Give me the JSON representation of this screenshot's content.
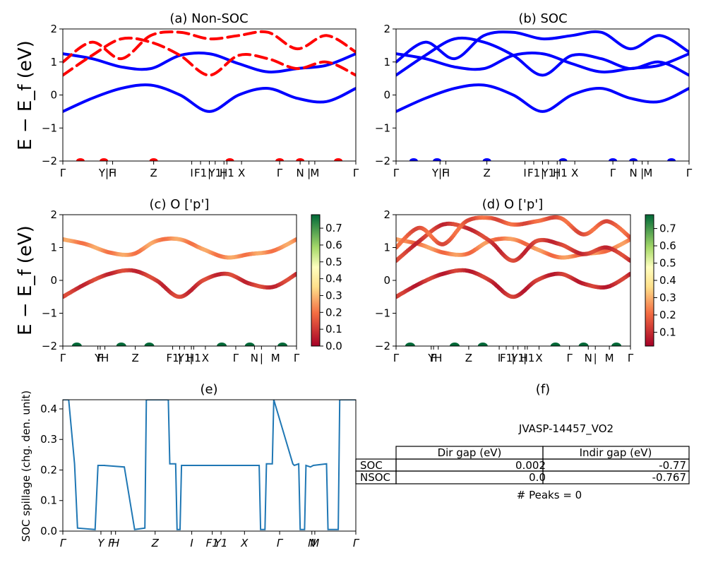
{
  "chart_data": [
    {
      "type": "line",
      "title": "(a) Non-SOC",
      "ylabel": "E − E_f (eV)",
      "ylim": [
        -2,
        2
      ],
      "yticks": [
        "−2",
        "−1",
        "0",
        "1",
        "2"
      ],
      "xtick_labels": [
        "Γ",
        "Y|F",
        "H",
        "Z",
        "I",
        "F1",
        "|",
        "Y1",
        "|",
        "H1",
        "X",
        "Γ",
        "N",
        "|",
        "M",
        "Γ"
      ],
      "series": [
        {
          "style": "solid",
          "color": "#0000ff",
          "bands": [
            {
              "x": [
                0,
                0.1,
                0.2,
                0.3,
                0.4,
                0.5,
                0.6,
                0.7,
                0.8,
                0.9,
                1.0
              ],
              "y": [
                -0.5,
                -0.1,
                0.2,
                0.3,
                0.0,
                -0.5,
                0.0,
                0.2,
                -0.1,
                -0.2,
                0.2
              ]
            },
            {
              "x": [
                0,
                0.1,
                0.2,
                0.3,
                0.4,
                0.5,
                0.6,
                0.7,
                0.8,
                0.9,
                1.0
              ],
              "y": [
                1.25,
                1.1,
                0.85,
                0.8,
                1.2,
                1.25,
                0.95,
                0.7,
                0.8,
                0.9,
                1.25
              ]
            }
          ]
        },
        {
          "style": "dashed",
          "color": "#ff0000",
          "bands": [
            {
              "x": [
                0,
                0.1,
                0.2,
                0.3,
                0.4,
                0.5,
                0.6,
                0.7,
                0.8,
                0.9,
                1.0
              ],
              "y": [
                0.6,
                1.2,
                1.7,
                1.6,
                1.2,
                0.6,
                1.2,
                1.1,
                0.8,
                1.0,
                0.6
              ]
            },
            {
              "x": [
                0,
                0.1,
                0.2,
                0.3,
                0.4,
                0.5,
                0.6,
                0.7,
                0.8,
                0.9,
                1.0
              ],
              "y": [
                1.0,
                1.6,
                1.1,
                1.8,
                1.9,
                1.7,
                1.8,
                1.9,
                1.4,
                1.8,
                1.3
              ]
            }
          ]
        }
      ]
    },
    {
      "type": "line",
      "title": "(b) SOC",
      "ylim": [
        -2,
        2
      ],
      "yticks": [
        "−2",
        "−1",
        "0",
        "1",
        "2"
      ],
      "xtick_labels": [
        "Γ",
        "Y|F",
        "H",
        "Z",
        "I",
        "F1",
        "|",
        "Y1",
        "|",
        "H1",
        "X",
        "Γ",
        "N",
        "|",
        "M",
        "Γ"
      ],
      "series": [
        {
          "style": "solid",
          "color": "#0000ff",
          "bands": [
            {
              "x": [
                0,
                0.1,
                0.2,
                0.3,
                0.4,
                0.5,
                0.6,
                0.7,
                0.8,
                0.9,
                1.0
              ],
              "y": [
                -0.5,
                -0.1,
                0.2,
                0.3,
                0.0,
                -0.5,
                0.0,
                0.2,
                -0.1,
                -0.2,
                0.2
              ]
            },
            {
              "x": [
                0,
                0.1,
                0.2,
                0.3,
                0.4,
                0.5,
                0.6,
                0.7,
                0.8,
                0.9,
                1.0
              ],
              "y": [
                1.25,
                1.1,
                0.85,
                0.8,
                1.2,
                1.25,
                0.95,
                0.7,
                0.8,
                0.9,
                1.25
              ]
            },
            {
              "x": [
                0,
                0.1,
                0.2,
                0.3,
                0.4,
                0.5,
                0.6,
                0.7,
                0.8,
                0.9,
                1.0
              ],
              "y": [
                0.6,
                1.2,
                1.7,
                1.6,
                1.2,
                0.6,
                1.2,
                1.1,
                0.8,
                1.0,
                0.6
              ]
            },
            {
              "x": [
                0,
                0.1,
                0.2,
                0.3,
                0.4,
                0.5,
                0.6,
                0.7,
                0.8,
                0.9,
                1.0
              ],
              "y": [
                1.0,
                1.6,
                1.1,
                1.8,
                1.9,
                1.7,
                1.8,
                1.9,
                1.4,
                1.8,
                1.3
              ]
            }
          ]
        }
      ]
    },
    {
      "type": "scatter",
      "title": "(c)  O ['p']",
      "ylabel": "E − E_f (eV)",
      "ylim": [
        -2,
        2
      ],
      "yticks": [
        "−2",
        "−1",
        "0",
        "1",
        "2"
      ],
      "xtick_labels": [
        "Γ",
        "Y",
        "F",
        "H",
        "Z",
        "F1",
        "|",
        "Y1",
        "|",
        "H1",
        "X",
        "Γ",
        "N",
        "|",
        "M",
        "Γ"
      ],
      "colorbar": {
        "ticks": [
          "0.0",
          "0.1",
          "0.2",
          "0.3",
          "0.4",
          "0.5",
          "0.6",
          "0.7"
        ],
        "range": [
          0,
          0.78
        ]
      },
      "bands": [
        {
          "x": [
            0,
            0.1,
            0.2,
            0.3,
            0.4,
            0.5,
            0.6,
            0.7,
            0.8,
            0.9,
            1.0
          ],
          "y": [
            -0.5,
            -0.1,
            0.2,
            0.3,
            0.0,
            -0.5,
            0.0,
            0.2,
            -0.1,
            -0.2,
            0.2
          ],
          "weight": 0.1
        },
        {
          "x": [
            0,
            0.1,
            0.2,
            0.3,
            0.4,
            0.5,
            0.6,
            0.7,
            0.8,
            0.9,
            1.0
          ],
          "y": [
            1.25,
            1.1,
            0.85,
            0.8,
            1.2,
            1.25,
            0.95,
            0.7,
            0.8,
            0.9,
            1.25
          ],
          "weight": 0.24
        }
      ]
    },
    {
      "type": "scatter",
      "title": "(d) O ['p']",
      "ylim": [
        -2,
        2
      ],
      "yticks": [
        "−2",
        "−1",
        "0",
        "1",
        "2"
      ],
      "xtick_labels": [
        "Γ",
        "Y",
        "F",
        "H",
        "Z",
        "I",
        "F1",
        "|",
        "Y1",
        "|",
        "H1",
        "X",
        "Γ",
        "N",
        "|",
        "M",
        "Γ"
      ],
      "colorbar": {
        "ticks": [
          "0.1",
          "0.2",
          "0.3",
          "0.4",
          "0.5",
          "0.6",
          "0.7"
        ],
        "range": [
          0.02,
          0.78
        ]
      },
      "bands": [
        {
          "x": [
            0,
            0.1,
            0.2,
            0.3,
            0.4,
            0.5,
            0.6,
            0.7,
            0.8,
            0.9,
            1.0
          ],
          "y": [
            -0.5,
            -0.1,
            0.2,
            0.3,
            0.0,
            -0.5,
            0.0,
            0.2,
            -0.1,
            -0.2,
            0.2
          ],
          "weight": 0.1
        },
        {
          "x": [
            0,
            0.1,
            0.2,
            0.3,
            0.4,
            0.5,
            0.6,
            0.7,
            0.8,
            0.9,
            1.0
          ],
          "y": [
            1.25,
            1.1,
            0.85,
            0.8,
            1.2,
            1.25,
            0.95,
            0.7,
            0.8,
            0.9,
            1.25
          ],
          "weight": 0.24
        },
        {
          "x": [
            0,
            0.1,
            0.2,
            0.3,
            0.4,
            0.5,
            0.6,
            0.7,
            0.8,
            0.9,
            1.0
          ],
          "y": [
            0.6,
            1.2,
            1.7,
            1.6,
            1.2,
            0.6,
            1.2,
            1.1,
            0.8,
            1.0,
            0.6
          ],
          "weight": 0.12
        },
        {
          "x": [
            0,
            0.1,
            0.2,
            0.3,
            0.4,
            0.5,
            0.6,
            0.7,
            0.8,
            0.9,
            1.0
          ],
          "y": [
            1.0,
            1.6,
            1.1,
            1.8,
            1.9,
            1.7,
            1.8,
            1.9,
            1.4,
            1.8,
            1.3
          ],
          "weight": 0.18
        }
      ]
    },
    {
      "type": "line",
      "title": "(e)",
      "ylabel": "SOC spillage (chg. den. unit)",
      "ylim": [
        0,
        0.43
      ],
      "yticks": [
        "0.0",
        "0.1",
        "0.2",
        "0.3",
        "0.4"
      ],
      "xtick_labels": [
        "Γ",
        "Y",
        "F",
        "H",
        "Z",
        "I",
        "F1",
        "Y1",
        "X",
        "Γ",
        "N",
        "M",
        "Γ"
      ],
      "x": [
        0,
        0.02,
        0.04,
        0.05,
        0.11,
        0.12,
        0.145,
        0.14,
        0.21,
        0.245,
        0.28,
        0.285,
        0.36,
        0.365,
        0.385,
        0.39,
        0.4,
        0.405,
        0.67,
        0.675,
        0.69,
        0.695,
        0.715,
        0.72,
        0.72,
        0.785,
        0.79,
        0.805,
        0.81,
        0.825,
        0.83,
        0.845,
        0.855,
        0.9,
        0.905,
        0.94,
        0.945,
        1.0
      ],
      "y": [
        0.43,
        0.43,
        0.22,
        0.01,
        0.005,
        0.215,
        0.215,
        0.215,
        0.21,
        0.005,
        0.01,
        0.43,
        0.43,
        0.22,
        0.22,
        0.005,
        0.005,
        0.215,
        0.215,
        0.005,
        0.005,
        0.22,
        0.22,
        0.43,
        0.43,
        0.22,
        0.215,
        0.22,
        0.005,
        0.005,
        0.215,
        0.21,
        0.215,
        0.22,
        0.005,
        0.005,
        0.43,
        0.43
      ]
    }
  ],
  "table_panel": {
    "title": "(f)",
    "subtitle": "JVASP-14457_VO2",
    "headers": [
      "",
      "Dir gap (eV)",
      "Indir gap (eV)"
    ],
    "rows": [
      [
        "SOC",
        "0.002",
        "-0.77"
      ],
      [
        "NSOC",
        "0.0",
        "-0.767"
      ]
    ],
    "peaks": "# Peaks = 0"
  }
}
